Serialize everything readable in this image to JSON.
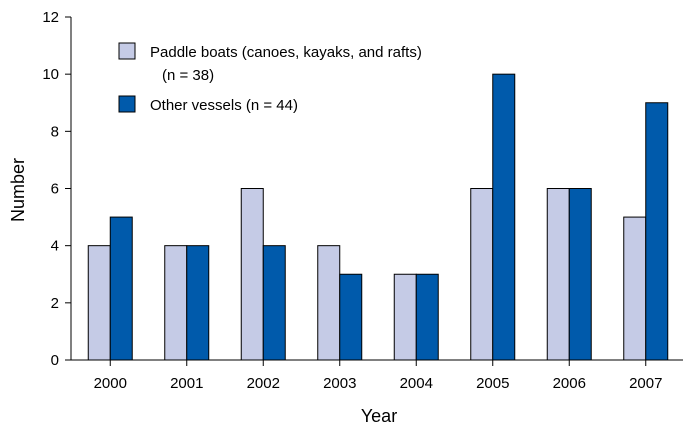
{
  "chart_data": {
    "type": "bar",
    "title": "",
    "xlabel": "Year",
    "ylabel": "Number",
    "ylim": [
      0,
      12
    ],
    "yticks": [
      0,
      2,
      4,
      6,
      8,
      10,
      12
    ],
    "grid": false,
    "legend_position": "top-left",
    "categories": [
      "2000",
      "2001",
      "2002",
      "2003",
      "2004",
      "2005",
      "2006",
      "2007"
    ],
    "series": [
      {
        "name": "Paddle boats (canoes, kayaks, and rafts)",
        "name_line2": "(n = 38)",
        "color": "#c5cbe6",
        "values": [
          4,
          4,
          6,
          4,
          3,
          6,
          6,
          5
        ]
      },
      {
        "name": "Other vessels (n = 44)",
        "color": "#005aab",
        "values": [
          5,
          4,
          4,
          3,
          3,
          10,
          6,
          9
        ]
      }
    ]
  }
}
